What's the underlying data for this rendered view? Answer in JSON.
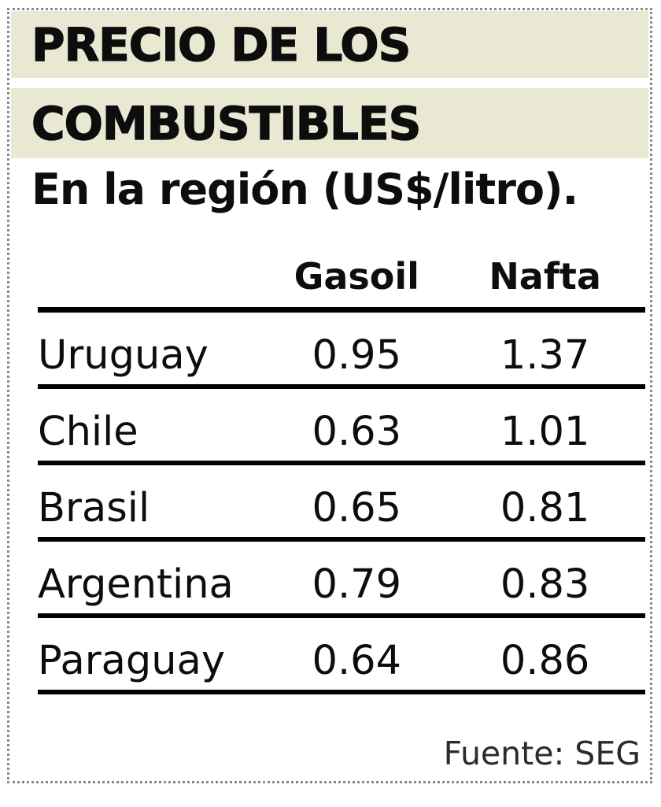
{
  "header": {
    "title_line1": "PRECIO DE LOS",
    "title_line2": "COMBUSTIBLES",
    "subtitle": "En la región (US$/litro)."
  },
  "footer": {
    "source": "Fuente: SEG"
  },
  "colors": {
    "band_bg": "#e9e8d3",
    "rule": "#000000",
    "dotted_border": "#8a8a8a"
  },
  "chart_data": {
    "type": "table",
    "title": "PRECIO DE LOS COMBUSTIBLES",
    "subtitle": "En la región (US$/litro).",
    "unit": "US$/litro",
    "columns": [
      "Gasoil",
      "Nafta"
    ],
    "rows": [
      {
        "country": "Uruguay",
        "gasoil": "0.95",
        "nafta": "1.37"
      },
      {
        "country": "Chile",
        "gasoil": "0.63",
        "nafta": "1.01"
      },
      {
        "country": "Brasil",
        "gasoil": "0.65",
        "nafta": "0.81"
      },
      {
        "country": "Argentina",
        "gasoil": "0.79",
        "nafta": "0.83"
      },
      {
        "country": "Paraguay",
        "gasoil": "0.64",
        "nafta": "0.86"
      }
    ],
    "source": "Fuente: SEG"
  }
}
